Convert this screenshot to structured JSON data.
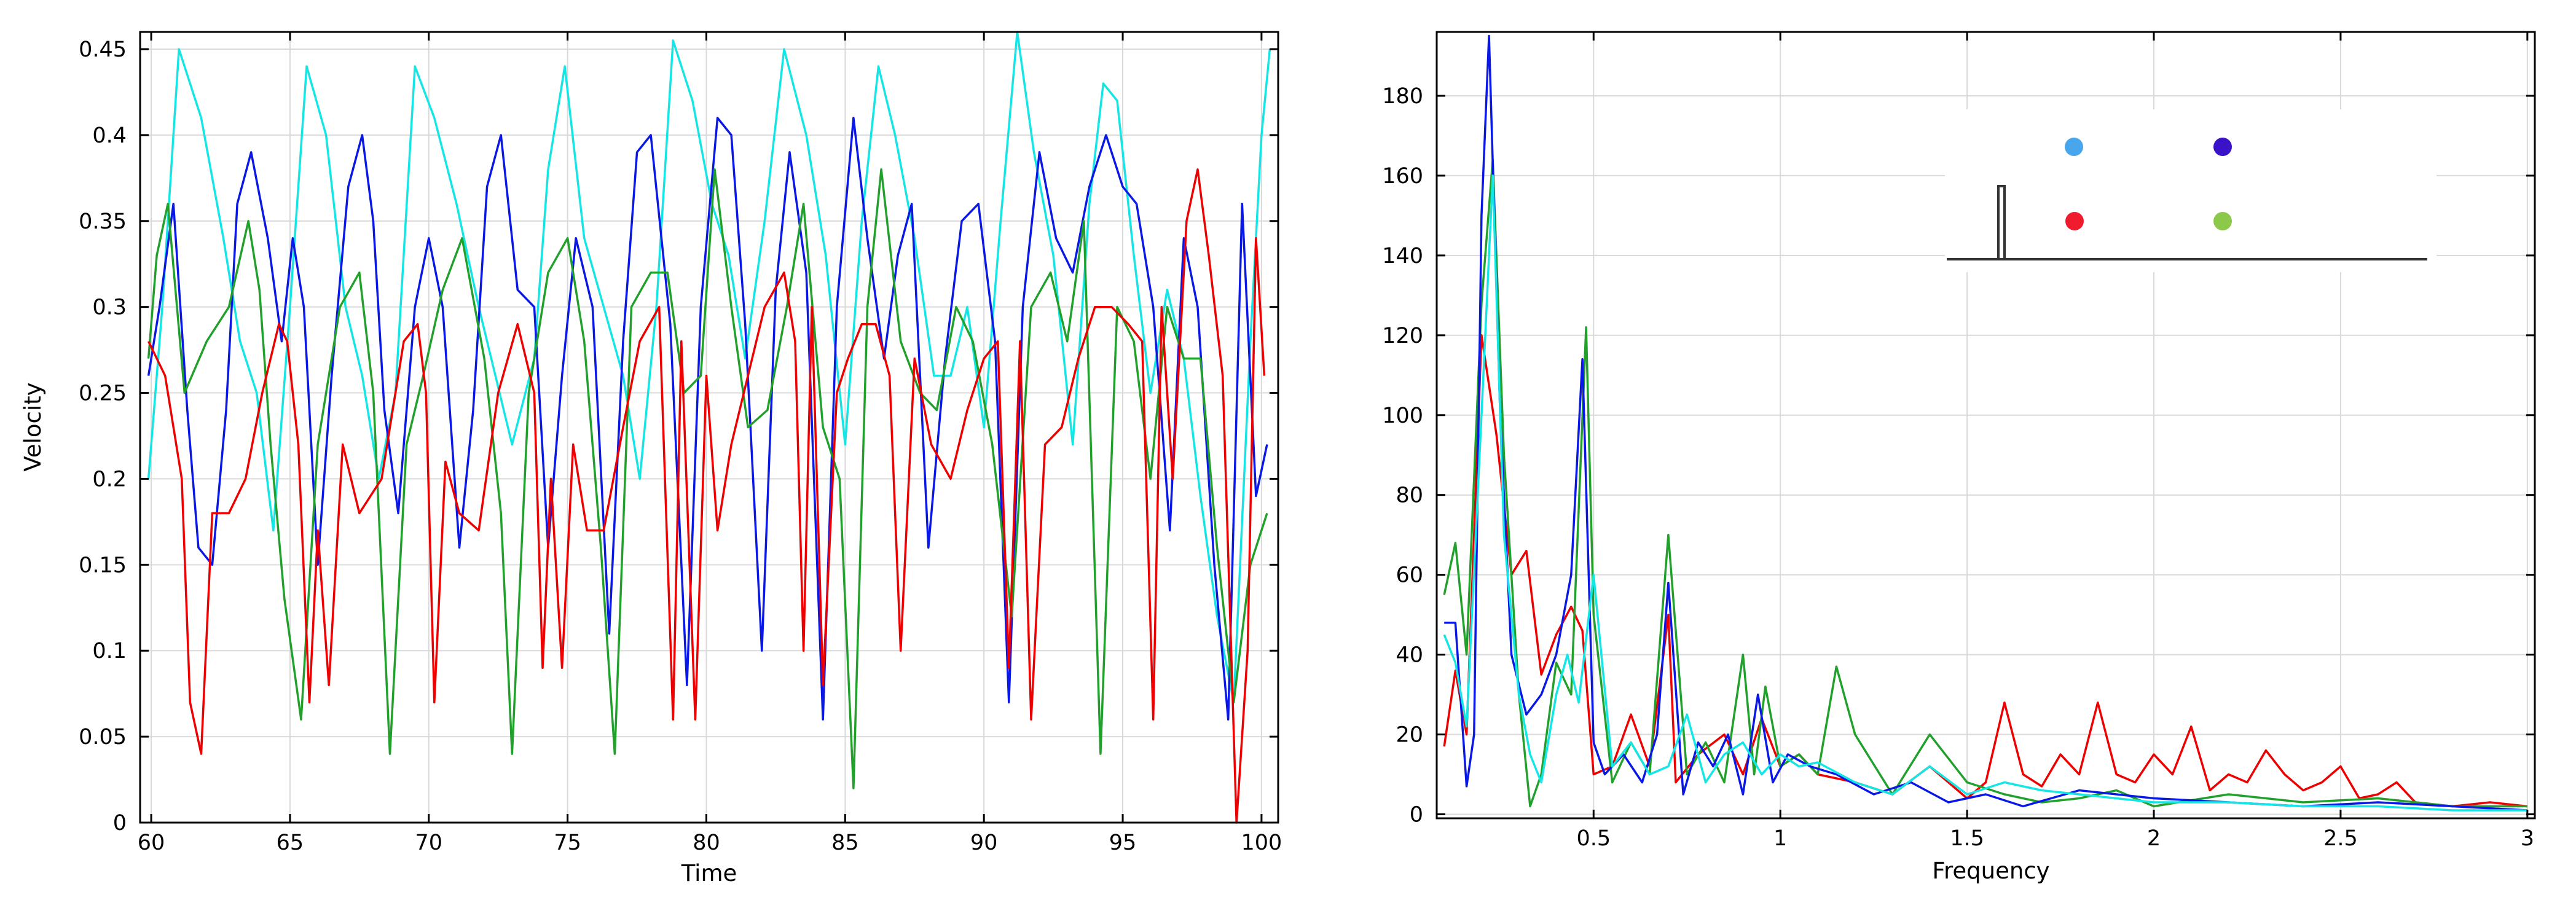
{
  "colors": {
    "red": "#ee0000",
    "green": "#22a02c",
    "blue": "#0a18e6",
    "cyan": "#14e6e6",
    "grid": "#d9d9d9",
    "axis": "#000000",
    "dot_light_blue": "#4aa6ec",
    "dot_indigo": "#3a12c8",
    "dot_red": "#ee1c2c",
    "dot_green": "#8cc84a"
  },
  "chart_data": [
    {
      "type": "line",
      "xlabel": "Time",
      "ylabel": "Velocity",
      "xlim": [
        59.6,
        100.6
      ],
      "ylim": [
        0,
        0.46
      ],
      "xticks": [
        60,
        65,
        70,
        75,
        80,
        85,
        90,
        95,
        100
      ],
      "xticklabels": [
        "60",
        "65",
        "70",
        "75",
        "80",
        "85",
        "90",
        "95",
        "100"
      ],
      "yticks": [
        0,
        0.05,
        0.1,
        0.15,
        0.2,
        0.25,
        0.3,
        0.35,
        0.4,
        0.45
      ],
      "yticklabels": [
        "0",
        "0.05",
        "0.1",
        "0.15",
        "0.2",
        "0.25",
        "0.3",
        "0.35",
        "0.4",
        "0.45"
      ],
      "grid": true,
      "series": [
        {
          "name": "cyan",
          "color": "cyan",
          "x": [
            59.9,
            60.4,
            61.0,
            61.8,
            62.6,
            63.2,
            63.8,
            64.4,
            65.0,
            65.6,
            66.3,
            67.0,
            67.6,
            68.2,
            68.8,
            69.5,
            70.2,
            71.0,
            71.8,
            72.4,
            73.0,
            73.8,
            74.3,
            74.9,
            75.6,
            76.3,
            77.0,
            77.6,
            78.2,
            78.8,
            79.5,
            80.2,
            80.8,
            81.4,
            82.1,
            82.8,
            83.6,
            84.3,
            85.0,
            85.6,
            86.2,
            86.8,
            87.5,
            88.2,
            88.8,
            89.4,
            90.0,
            90.6,
            91.2,
            91.8,
            92.5,
            93.2,
            93.8,
            94.3,
            94.8,
            95.4,
            96.0,
            96.6,
            97.2,
            97.8,
            98.4,
            99.0,
            99.6,
            100.0,
            100.3
          ],
          "values": [
            0.2,
            0.3,
            0.45,
            0.41,
            0.34,
            0.28,
            0.25,
            0.17,
            0.3,
            0.44,
            0.4,
            0.3,
            0.26,
            0.2,
            0.25,
            0.44,
            0.41,
            0.36,
            0.3,
            0.26,
            0.22,
            0.27,
            0.38,
            0.44,
            0.34,
            0.3,
            0.26,
            0.2,
            0.3,
            0.455,
            0.42,
            0.36,
            0.33,
            0.27,
            0.35,
            0.45,
            0.4,
            0.33,
            0.22,
            0.35,
            0.44,
            0.4,
            0.34,
            0.26,
            0.26,
            0.3,
            0.23,
            0.35,
            0.46,
            0.39,
            0.33,
            0.22,
            0.36,
            0.43,
            0.42,
            0.33,
            0.25,
            0.31,
            0.27,
            0.19,
            0.12,
            0.07,
            0.28,
            0.4,
            0.45
          ]
        },
        {
          "name": "blue",
          "color": "blue",
          "x": [
            59.9,
            60.3,
            60.8,
            61.3,
            61.7,
            62.2,
            62.7,
            63.1,
            63.6,
            64.2,
            64.7,
            65.1,
            65.5,
            66.0,
            66.5,
            67.1,
            67.6,
            68.0,
            68.4,
            68.9,
            69.5,
            70.0,
            70.5,
            71.1,
            71.6,
            72.1,
            72.6,
            73.2,
            73.8,
            74.3,
            74.8,
            75.3,
            75.9,
            76.5,
            77.0,
            77.5,
            78.0,
            78.7,
            79.3,
            79.8,
            80.4,
            80.9,
            81.4,
            82.0,
            82.5,
            83.0,
            83.6,
            84.2,
            84.7,
            85.3,
            85.8,
            86.4,
            86.9,
            87.4,
            88.0,
            88.6,
            89.2,
            89.8,
            90.4,
            90.9,
            91.4,
            92.0,
            92.6,
            93.2,
            93.8,
            94.4,
            95.0,
            95.5,
            96.1,
            96.7,
            97.2,
            97.7,
            98.3,
            98.8,
            99.3,
            99.8,
            100.2
          ],
          "values": [
            0.26,
            0.3,
            0.36,
            0.24,
            0.16,
            0.15,
            0.24,
            0.36,
            0.39,
            0.34,
            0.28,
            0.34,
            0.3,
            0.15,
            0.26,
            0.37,
            0.4,
            0.35,
            0.24,
            0.18,
            0.3,
            0.34,
            0.3,
            0.16,
            0.24,
            0.37,
            0.4,
            0.31,
            0.3,
            0.16,
            0.26,
            0.34,
            0.3,
            0.11,
            0.28,
            0.39,
            0.4,
            0.29,
            0.08,
            0.3,
            0.41,
            0.4,
            0.29,
            0.1,
            0.31,
            0.39,
            0.32,
            0.06,
            0.3,
            0.41,
            0.34,
            0.27,
            0.33,
            0.36,
            0.16,
            0.27,
            0.35,
            0.36,
            0.28,
            0.07,
            0.3,
            0.39,
            0.34,
            0.32,
            0.37,
            0.4,
            0.37,
            0.36,
            0.3,
            0.17,
            0.34,
            0.3,
            0.15,
            0.06,
            0.36,
            0.19,
            0.22
          ]
        },
        {
          "name": "green",
          "color": "green",
          "x": [
            59.9,
            60.2,
            60.6,
            61.2,
            62.0,
            62.8,
            63.5,
            63.9,
            64.3,
            64.8,
            65.4,
            66.0,
            66.8,
            67.5,
            68.0,
            68.6,
            69.2,
            69.8,
            70.5,
            71.2,
            72.0,
            72.6,
            73.0,
            73.6,
            74.3,
            75.0,
            75.6,
            76.2,
            76.7,
            77.3,
            78.0,
            78.6,
            79.2,
            79.8,
            80.3,
            80.9,
            81.5,
            82.2,
            82.9,
            83.5,
            84.2,
            84.8,
            85.3,
            85.8,
            86.3,
            87.0,
            87.7,
            88.3,
            89.0,
            89.6,
            90.3,
            91.0,
            91.7,
            92.4,
            93.0,
            93.6,
            94.2,
            94.8,
            95.4,
            96.0,
            96.6,
            97.2,
            97.8,
            98.4,
            99.0,
            99.6,
            100.2
          ],
          "values": [
            0.27,
            0.33,
            0.36,
            0.25,
            0.28,
            0.3,
            0.35,
            0.31,
            0.22,
            0.13,
            0.06,
            0.22,
            0.3,
            0.32,
            0.25,
            0.04,
            0.22,
            0.26,
            0.31,
            0.34,
            0.27,
            0.18,
            0.04,
            0.25,
            0.32,
            0.34,
            0.28,
            0.16,
            0.04,
            0.3,
            0.32,
            0.32,
            0.25,
            0.26,
            0.38,
            0.3,
            0.23,
            0.24,
            0.3,
            0.36,
            0.23,
            0.2,
            0.02,
            0.3,
            0.38,
            0.28,
            0.25,
            0.24,
            0.3,
            0.28,
            0.22,
            0.12,
            0.3,
            0.32,
            0.28,
            0.35,
            0.04,
            0.3,
            0.28,
            0.2,
            0.3,
            0.27,
            0.27,
            0.16,
            0.07,
            0.15,
            0.18
          ]
        },
        {
          "name": "red",
          "color": "red",
          "x": [
            59.9,
            60.5,
            61.1,
            61.4,
            61.8,
            62.2,
            62.8,
            63.4,
            64.0,
            64.6,
            64.9,
            65.3,
            65.7,
            66.0,
            66.4,
            66.9,
            67.5,
            68.3,
            69.1,
            69.6,
            69.9,
            70.2,
            70.6,
            71.1,
            71.8,
            72.5,
            73.2,
            73.8,
            74.1,
            74.4,
            74.8,
            75.2,
            75.7,
            76.3,
            77.0,
            77.6,
            78.3,
            78.8,
            79.1,
            79.6,
            80.0,
            80.4,
            80.9,
            81.5,
            82.1,
            82.8,
            83.2,
            83.5,
            83.8,
            84.2,
            84.7,
            85.1,
            85.6,
            86.1,
            86.6,
            87.0,
            87.5,
            88.1,
            88.8,
            89.4,
            90.0,
            90.5,
            90.9,
            91.3,
            91.7,
            92.2,
            92.8,
            93.4,
            94.0,
            94.6,
            95.2,
            95.7,
            96.1,
            96.4,
            96.8,
            97.3,
            97.7,
            98.1,
            98.6,
            99.1,
            99.5,
            99.8,
            100.1
          ],
          "values": [
            0.28,
            0.26,
            0.2,
            0.07,
            0.04,
            0.18,
            0.18,
            0.2,
            0.25,
            0.29,
            0.28,
            0.22,
            0.07,
            0.17,
            0.08,
            0.22,
            0.18,
            0.2,
            0.28,
            0.29,
            0.25,
            0.07,
            0.21,
            0.18,
            0.17,
            0.25,
            0.29,
            0.25,
            0.09,
            0.2,
            0.09,
            0.22,
            0.17,
            0.17,
            0.23,
            0.28,
            0.3,
            0.06,
            0.28,
            0.06,
            0.26,
            0.17,
            0.22,
            0.26,
            0.3,
            0.32,
            0.28,
            0.1,
            0.3,
            0.08,
            0.25,
            0.27,
            0.29,
            0.29,
            0.26,
            0.1,
            0.27,
            0.22,
            0.2,
            0.24,
            0.27,
            0.28,
            0.09,
            0.28,
            0.06,
            0.22,
            0.23,
            0.27,
            0.3,
            0.3,
            0.29,
            0.28,
            0.06,
            0.3,
            0.2,
            0.35,
            0.38,
            0.33,
            0.26,
            0.0,
            0.1,
            0.34,
            0.26
          ]
        }
      ]
    },
    {
      "type": "line",
      "xlabel": "Frequency",
      "ylabel": "",
      "xlim": [
        0.08,
        3.02
      ],
      "ylim": [
        -1,
        196
      ],
      "xticks": [
        0.5,
        1,
        1.5,
        2,
        2.5,
        3
      ],
      "xticklabels": [
        "0.5",
        "1",
        "1.5",
        "2",
        "2.5",
        "3"
      ],
      "yticks": [
        0,
        20,
        40,
        60,
        80,
        100,
        120,
        140,
        160,
        180
      ],
      "yticklabels": [
        "0",
        "20",
        "40",
        "60",
        "80",
        "100",
        "120",
        "140",
        "160",
        "180"
      ],
      "grid": true,
      "series": [
        {
          "name": "red",
          "color": "red",
          "x": [
            0.1,
            0.13,
            0.16,
            0.2,
            0.24,
            0.28,
            0.32,
            0.36,
            0.4,
            0.44,
            0.47,
            0.5,
            0.55,
            0.6,
            0.65,
            0.7,
            0.72,
            0.78,
            0.85,
            0.9,
            0.95,
            1.0,
            1.05,
            1.1,
            1.2,
            1.3,
            1.4,
            1.5,
            1.55,
            1.6,
            1.65,
            1.7,
            1.75,
            1.8,
            1.85,
            1.9,
            1.95,
            2.0,
            2.05,
            2.1,
            2.15,
            2.2,
            2.25,
            2.3,
            2.35,
            2.4,
            2.45,
            2.5,
            2.55,
            2.6,
            2.65,
            2.7,
            2.8,
            2.9,
            3.0
          ],
          "values": [
            17,
            36,
            20,
            120,
            95,
            60,
            66,
            35,
            45,
            52,
            46,
            10,
            12,
            25,
            12,
            50,
            8,
            15,
            20,
            10,
            24,
            12,
            15,
            10,
            8,
            5,
            12,
            4,
            8,
            28,
            10,
            7,
            15,
            10,
            28,
            10,
            8,
            15,
            10,
            22,
            6,
            10,
            8,
            16,
            10,
            6,
            8,
            12,
            4,
            5,
            8,
            3,
            2,
            3,
            2
          ]
        },
        {
          "name": "green",
          "color": "green",
          "x": [
            0.1,
            0.13,
            0.16,
            0.2,
            0.23,
            0.26,
            0.3,
            0.33,
            0.36,
            0.4,
            0.44,
            0.48,
            0.5,
            0.55,
            0.6,
            0.65,
            0.7,
            0.75,
            0.8,
            0.85,
            0.9,
            0.93,
            0.96,
            1.0,
            1.05,
            1.1,
            1.15,
            1.2,
            1.3,
            1.4,
            1.5,
            1.6,
            1.7,
            1.8,
            1.9,
            2.0,
            2.2,
            2.4,
            2.6,
            2.8,
            3.0
          ],
          "values": [
            55,
            68,
            40,
            128,
            164,
            90,
            30,
            2,
            10,
            38,
            30,
            122,
            50,
            8,
            18,
            10,
            70,
            10,
            18,
            8,
            40,
            10,
            32,
            12,
            15,
            10,
            37,
            20,
            5,
            20,
            8,
            5,
            3,
            4,
            6,
            2,
            5,
            3,
            4,
            2,
            2
          ]
        },
        {
          "name": "blue",
          "color": "blue",
          "x": [
            0.1,
            0.13,
            0.16,
            0.18,
            0.2,
            0.22,
            0.25,
            0.28,
            0.32,
            0.36,
            0.4,
            0.44,
            0.47,
            0.5,
            0.53,
            0.58,
            0.63,
            0.67,
            0.7,
            0.74,
            0.78,
            0.82,
            0.86,
            0.9,
            0.94,
            0.98,
            1.02,
            1.08,
            1.15,
            1.25,
            1.35,
            1.45,
            1.55,
            1.65,
            1.8,
            2.0,
            2.2,
            2.4,
            2.6,
            2.8,
            3.0
          ],
          "values": [
            48,
            48,
            7,
            20,
            150,
            195,
            100,
            40,
            25,
            30,
            40,
            60,
            114,
            18,
            10,
            15,
            8,
            20,
            58,
            5,
            18,
            12,
            20,
            5,
            30,
            8,
            15,
            12,
            10,
            5,
            8,
            3,
            5,
            2,
            6,
            4,
            3,
            2,
            3,
            2,
            1
          ]
        },
        {
          "name": "cyan",
          "color": "cyan",
          "x": [
            0.1,
            0.13,
            0.16,
            0.2,
            0.23,
            0.26,
            0.3,
            0.33,
            0.36,
            0.4,
            0.43,
            0.46,
            0.5,
            0.55,
            0.6,
            0.65,
            0.7,
            0.75,
            0.8,
            0.85,
            0.9,
            0.95,
            1.0,
            1.05,
            1.1,
            1.2,
            1.3,
            1.4,
            1.5,
            1.6,
            1.7,
            1.8,
            2.0,
            2.2,
            2.4,
            2.6,
            2.8,
            3.0
          ],
          "values": [
            45,
            38,
            22,
            100,
            160,
            70,
            30,
            15,
            8,
            30,
            40,
            28,
            60,
            12,
            18,
            10,
            12,
            25,
            8,
            15,
            18,
            10,
            15,
            12,
            13,
            8,
            5,
            12,
            5,
            8,
            6,
            5,
            3,
            3,
            2,
            2,
            1,
            1
          ]
        }
      ]
    }
  ],
  "inset": {
    "dots": [
      "dot_light_blue",
      "dot_indigo",
      "dot_red",
      "dot_green"
    ]
  }
}
